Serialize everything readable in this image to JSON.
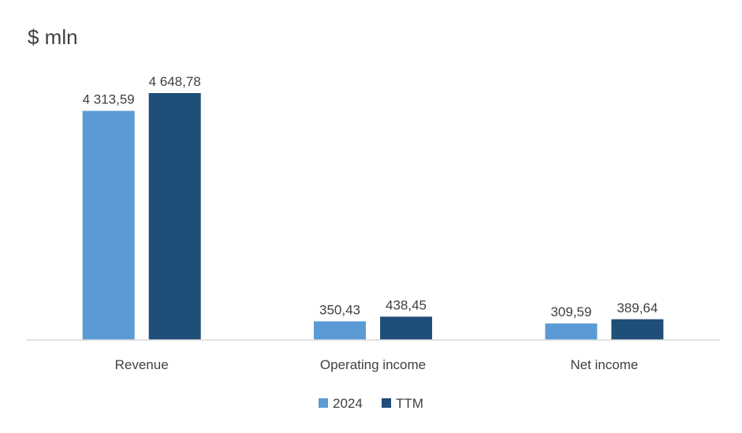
{
  "chart_data": {
    "type": "bar",
    "title": "$ mln",
    "categories": [
      "Revenue",
      "Operating income",
      "Net income"
    ],
    "series": [
      {
        "name": "2024",
        "color": "#5B9BD5",
        "values": [
          4313.59,
          350.43,
          309.59
        ],
        "labels": [
          "4 313,59",
          "350,43",
          "309,59"
        ]
      },
      {
        "name": "TTM",
        "color": "#1F4E79",
        "values": [
          4648.78,
          438.45,
          389.64
        ],
        "labels": [
          "4 648,78",
          "438,45",
          "389,64"
        ]
      }
    ],
    "ylim": [
      0,
      5000
    ],
    "grid": false,
    "legend": "bottom-center",
    "axis_color": "#D9D9D9"
  }
}
